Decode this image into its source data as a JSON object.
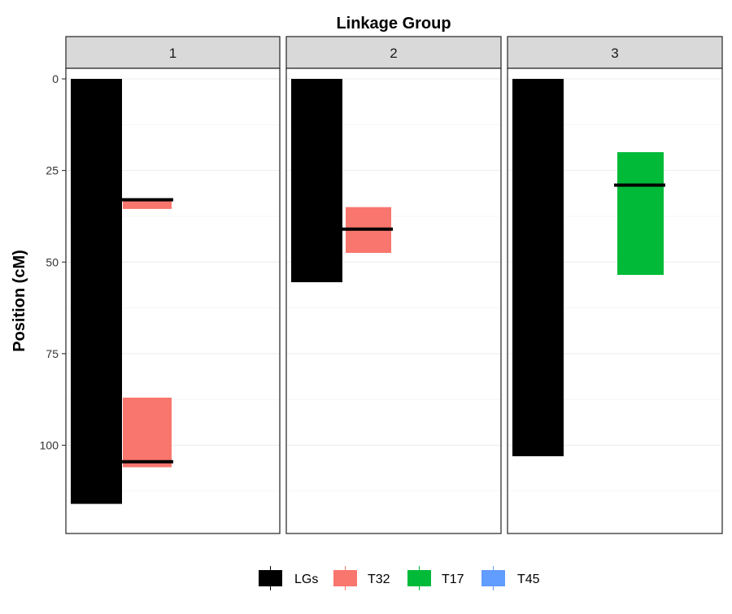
{
  "chart_data": {
    "type": "bar",
    "title": "Linkage Group",
    "ylabel": "Position (cM)",
    "xlabel": "",
    "y_reversed": true,
    "ylim": [
      0,
      123
    ],
    "y_ticks": [
      0,
      25,
      50,
      75,
      100
    ],
    "grid": true,
    "legend_position": "bottom",
    "legend": [
      {
        "name": "LGs",
        "color": "#000000"
      },
      {
        "name": "T32",
        "color": "#F8766D"
      },
      {
        "name": "T17",
        "color": "#00BA38"
      },
      {
        "name": "T45",
        "color": "#619CFF"
      }
    ],
    "panels": [
      {
        "label": "1",
        "lg_length": 116,
        "qtls": [
          {
            "trait": "T32",
            "start": 33,
            "end": 35.5,
            "peak": 33
          },
          {
            "trait": "T32",
            "start": 87,
            "end": 106,
            "peak": 104.5
          }
        ]
      },
      {
        "label": "2",
        "lg_length": 55.5,
        "qtls": [
          {
            "trait": "T32",
            "start": 35,
            "end": 47.5,
            "peak": 41
          }
        ]
      },
      {
        "label": "3",
        "lg_length": 103,
        "qtls": [
          {
            "trait": "T17",
            "start": 20,
            "end": 53.5,
            "peak": 29
          }
        ]
      }
    ]
  }
}
